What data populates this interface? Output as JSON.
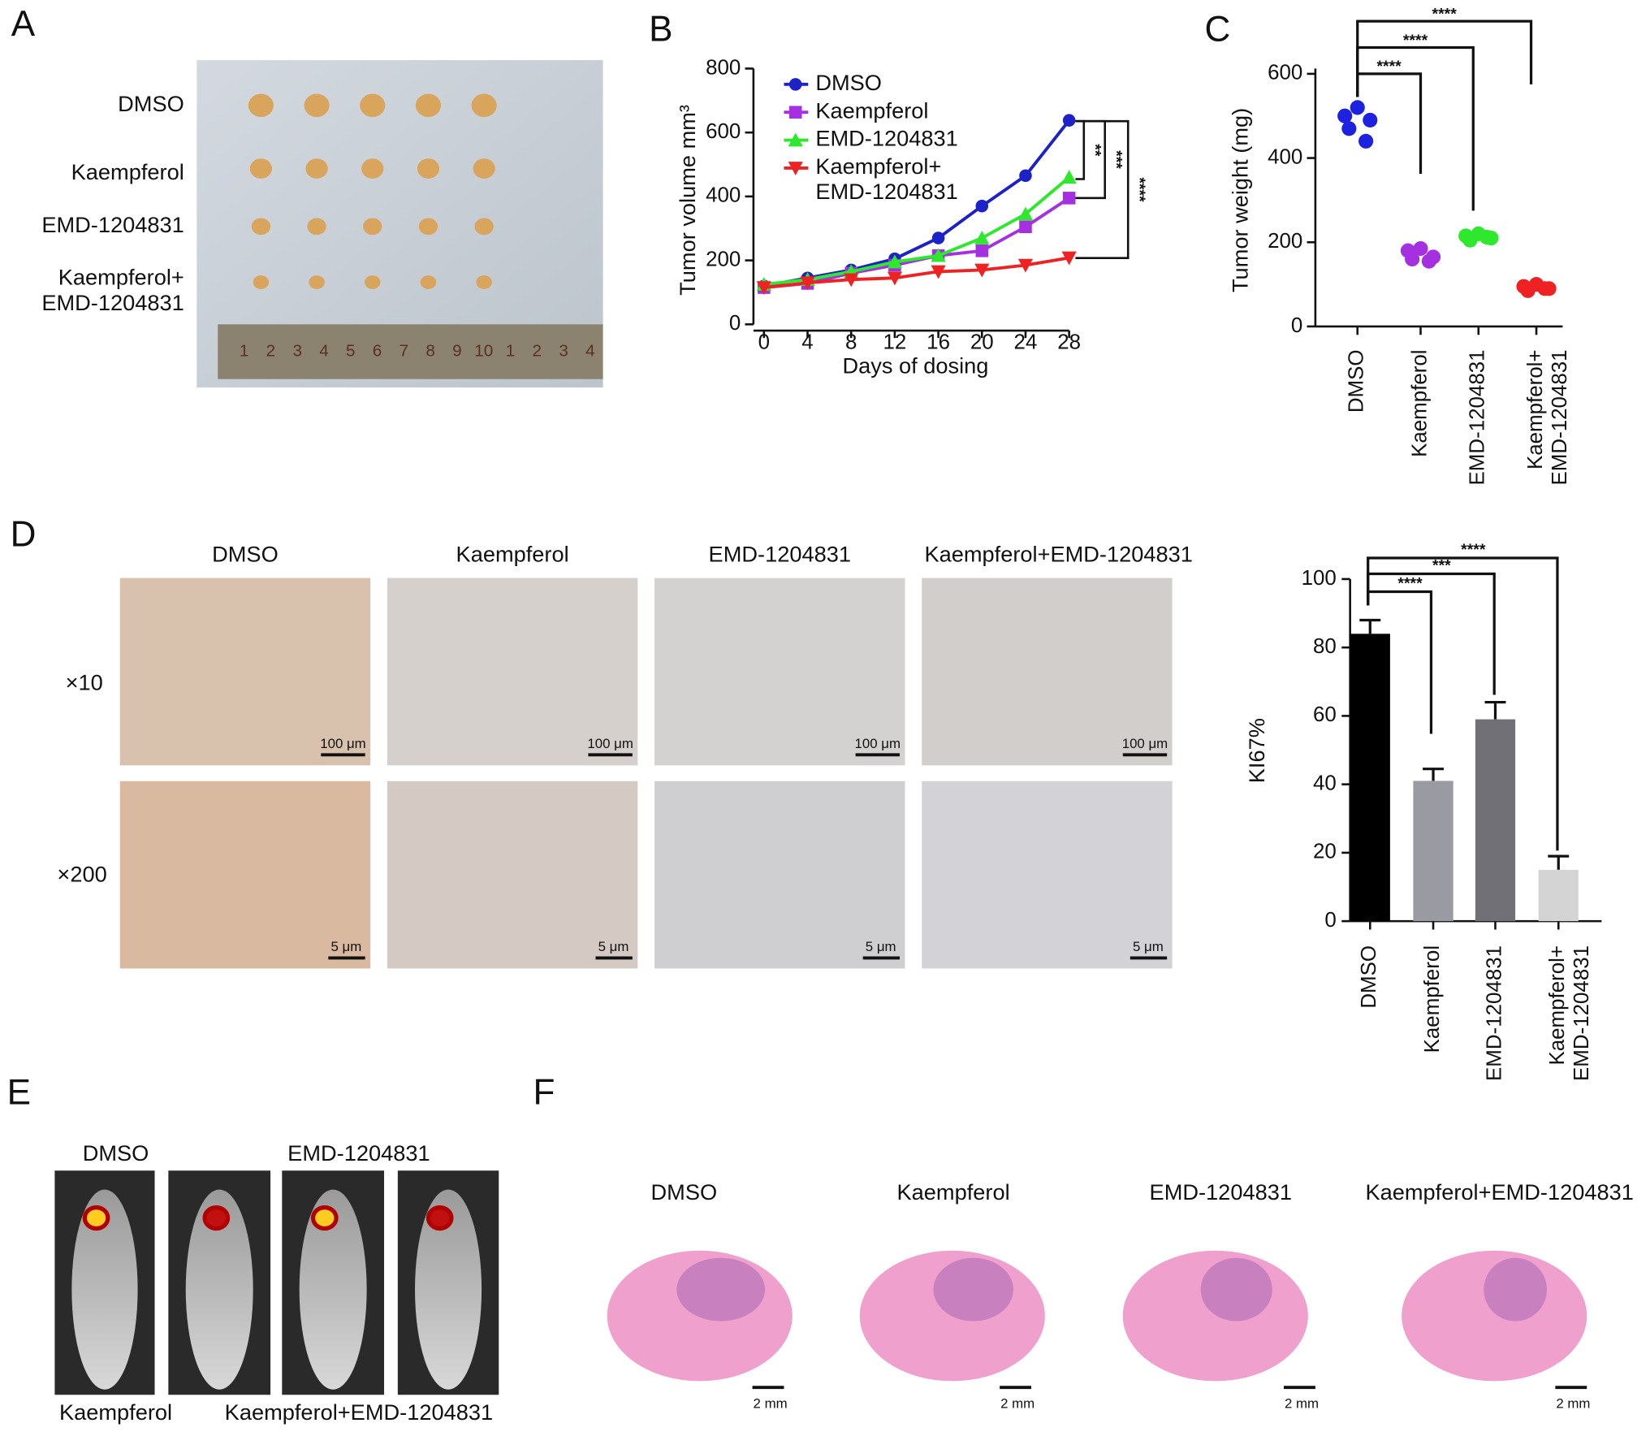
{
  "panel_labels": [
    "A",
    "B",
    "C",
    "D",
    "E",
    "F"
  ],
  "panel_a": {
    "row_labels": [
      "DMSO",
      "Kaempferol",
      "EMD-1204831",
      "Kaempferol+\nEMD-1204831"
    ],
    "ruler_labels": [
      "1",
      "2",
      "3",
      "4",
      "5",
      "6",
      "7",
      "8",
      "9",
      "10",
      "1",
      "2",
      "3",
      "4"
    ]
  },
  "chart_data": [
    {
      "type": "line",
      "y_label": "Tumor volume mm³",
      "x_label": "Days of dosing",
      "x": [
        0,
        4,
        8,
        12,
        16,
        20,
        24,
        28
      ],
      "xlim": [
        0,
        28
      ],
      "xticks": [
        0,
        4,
        8,
        12,
        16,
        20,
        24,
        28
      ],
      "ylim": [
        0,
        800
      ],
      "yticks": [
        0,
        200,
        400,
        600,
        800
      ],
      "legend": "upper left",
      "series": [
        {
          "name": "DMSO",
          "color": "#1c22c8",
          "marker": "circle",
          "values": [
            120,
            145,
            170,
            205,
            270,
            370,
            465,
            638
          ]
        },
        {
          "name": "Kaempferol",
          "color": "#a530e0",
          "marker": "square",
          "values": [
            115,
            128,
            160,
            185,
            215,
            230,
            305,
            395
          ]
        },
        {
          "name": "EMD-1204831",
          "color": "#2ee82e",
          "marker": "triangle",
          "values": [
            125,
            140,
            165,
            195,
            215,
            270,
            345,
            460
          ]
        },
        {
          "name": "Kaempferol+\nEMD-1204831",
          "color": "#ee2222",
          "marker": "triangle-down",
          "values": [
            115,
            130,
            140,
            145,
            165,
            170,
            185,
            208
          ]
        }
      ],
      "significance": [
        "**",
        "***",
        "****"
      ]
    },
    {
      "type": "strip",
      "y_label": "Tumor weight (mg)",
      "categories": [
        "DMSO",
        "Kaempferol",
        "EMD-1204831",
        "Kaempferol+\nEMD-1204831"
      ],
      "colors": [
        "#1c22e0",
        "#a530e0",
        "#2ee82e",
        "#ee2222"
      ],
      "values": [
        [
          520,
          500,
          490,
          470,
          440
        ],
        [
          185,
          180,
          165,
          160,
          155
        ],
        [
          220,
          215,
          210,
          205,
          212
        ],
        [
          100,
          95,
          90,
          85,
          90
        ]
      ],
      "ylim": [
        0,
        600
      ],
      "yticks": [
        0,
        200,
        400,
        600
      ],
      "significance": [
        "****",
        "****",
        "****"
      ]
    },
    {
      "type": "bar",
      "y_label": "KI67%",
      "categories": [
        "DMSO",
        "Kaempferol",
        "EMD-1204831",
        "Kaempferol+\nEMD-1204831"
      ],
      "colors": [
        "#000000",
        "#9a9aa2",
        "#707076",
        "#d4d4d4"
      ],
      "values": [
        84,
        41,
        59,
        15
      ],
      "errors": [
        4,
        3.5,
        5,
        4
      ],
      "ylim": [
        0,
        100
      ],
      "yticks": [
        0,
        20,
        40,
        60,
        80,
        100
      ],
      "significance": [
        "****",
        "***",
        "****"
      ]
    }
  ],
  "panel_d": {
    "columns": [
      "DMSO",
      "Kaempferol",
      "EMD-1204831",
      "Kaempferol+EMD-1204831"
    ],
    "rows": [
      "×10",
      "×200"
    ],
    "scale_bars": [
      "100 μm",
      "5 μm"
    ]
  },
  "panel_e": {
    "labels": [
      "DMSO",
      "EMD-1204831",
      "Kaempferol",
      "Kaempferol+EMD-1204831"
    ]
  },
  "panel_f": {
    "labels": [
      "DMSO",
      "Kaempferol",
      "EMD-1204831",
      "Kaempferol+EMD-1204831"
    ],
    "scale_bar": "2 mm"
  }
}
